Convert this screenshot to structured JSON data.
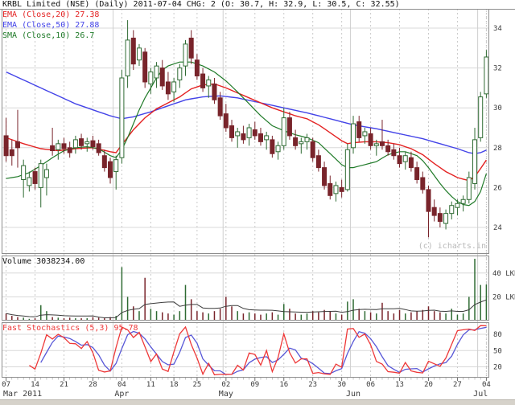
{
  "header": {
    "title": "KRBL Limited (NSE) (Daily) 2011-07-04 CHG: 2 (O: 30.7, H: 32.9, L: 30.5, C: 32.55)"
  },
  "legend": {
    "ema20": "EMA (Close,20) 27.38",
    "ema50": "EMA (Close,50) 27.88",
    "sma10": "SMA (Close,10) 26.7"
  },
  "panels": {
    "volume_label": "Volume 3038234.00",
    "stoch_label": "Fast Stochastics (5,3) 95.78",
    "watermark": "(c) icharts.in"
  },
  "chart_data": {
    "type": "candlestick+volume+stochastic",
    "symbol": "KRBL Limited (NSE)",
    "interval": "Daily",
    "last_date": "2011-07-04",
    "last_quote": {
      "chg": 2,
      "open": 30.7,
      "high": 32.9,
      "low": 30.5,
      "close": 32.55
    },
    "indicator_last": {
      "ema20": 27.38,
      "ema50": 27.88,
      "sma10": 26.7,
      "stoch_k": 95.78
    },
    "volume_last": 3038234.0,
    "price_axis_ticks": [
      34,
      32,
      30,
      28,
      26,
      24
    ],
    "volume_axis_ticks": [
      {
        "v": 40,
        "label": "40 LKHS"
      },
      {
        "v": 20,
        "label": "20 LKHS"
      }
    ],
    "stoch_axis_ticks": [
      80,
      50,
      20
    ],
    "candle_fields": [
      "date",
      "open",
      "high",
      "low",
      "close",
      "volume_lakhs"
    ],
    "candles": [
      [
        "Mar 07",
        28.6,
        29.5,
        27.3,
        27.6,
        6
      ],
      [
        "Mar 08",
        27.9,
        28.4,
        27.1,
        27.6,
        4
      ],
      [
        "Mar 09",
        28.3,
        29.9,
        27.0,
        28.0,
        3
      ],
      [
        "Mar 10",
        26.4,
        27.4,
        25.5,
        27.1,
        2.5
      ],
      [
        "Mar 11",
        26.1,
        26.8,
        25.8,
        26.5,
        1.5
      ],
      [
        "Mar 14",
        26.8,
        27.0,
        25.9,
        26.2,
        2
      ],
      [
        "Mar 15",
        26.0,
        27.4,
        25.0,
        27.2,
        13
      ],
      [
        "Mar 16",
        26.5,
        27.2,
        25.6,
        26.9,
        8
      ],
      [
        "Mar 17",
        28.1,
        29.0,
        27.6,
        27.85,
        3
      ],
      [
        "Mar 18",
        27.9,
        28.4,
        27.4,
        28.2,
        2.5
      ],
      [
        "Mar 21",
        28.2,
        28.5,
        27.7,
        27.95,
        2
      ],
      [
        "Mar 22",
        28.0,
        28.3,
        27.5,
        27.75,
        2.5
      ],
      [
        "Mar 23",
        28.0,
        28.6,
        27.7,
        28.4,
        2
      ],
      [
        "Mar 24",
        28.45,
        28.7,
        27.9,
        28.1,
        2
      ],
      [
        "Mar 25",
        28.2,
        28.5,
        27.8,
        28.3,
        2
      ],
      [
        "Mar 28",
        28.35,
        28.6,
        27.9,
        28.05,
        3
      ],
      [
        "Mar 29",
        28.2,
        28.4,
        27.6,
        27.75,
        2.5
      ],
      [
        "Mar 30",
        27.6,
        27.9,
        26.8,
        27.0,
        2
      ],
      [
        "Mar 31",
        27.3,
        27.5,
        26.2,
        26.5,
        3
      ],
      [
        "Apr 01",
        26.8,
        27.6,
        25.9,
        27.4,
        4
      ],
      [
        "Apr 04",
        27.5,
        31.9,
        27.2,
        31.5,
        45
      ],
      [
        "Apr 05",
        31.6,
        34.4,
        31.0,
        33.4,
        20
      ],
      [
        "Apr 06",
        33.5,
        33.9,
        31.9,
        32.2,
        12
      ],
      [
        "Apr 07",
        32.4,
        33.2,
        32.1,
        33.0,
        8
      ],
      [
        "Apr 08",
        32.8,
        33.0,
        31.0,
        31.3,
        36
      ],
      [
        "Apr 11",
        31.2,
        32.0,
        30.7,
        31.8,
        10
      ],
      [
        "Apr 12",
        31.5,
        32.3,
        31.0,
        32.1,
        8
      ],
      [
        "Apr 13",
        32.0,
        32.4,
        30.9,
        31.1,
        7
      ],
      [
        "Apr 15",
        31.3,
        31.8,
        30.4,
        30.7,
        6
      ],
      [
        "Apr 18",
        30.8,
        31.5,
        30.3,
        31.3,
        5
      ],
      [
        "Apr 19",
        31.4,
        32.2,
        31.0,
        32.0,
        8
      ],
      [
        "Apr 20",
        32.1,
        33.4,
        31.6,
        33.2,
        30
      ],
      [
        "Apr 21",
        33.5,
        33.9,
        32.2,
        32.5,
        18
      ],
      [
        "Apr 25",
        32.4,
        32.7,
        31.4,
        31.6,
        8
      ],
      [
        "Apr 26",
        31.7,
        32.0,
        30.8,
        31.0,
        7
      ],
      [
        "Apr 27",
        31.1,
        31.6,
        30.5,
        31.4,
        6
      ],
      [
        "Apr 28",
        31.2,
        31.5,
        30.2,
        30.4,
        8
      ],
      [
        "Apr 29",
        30.5,
        30.8,
        29.4,
        29.6,
        10
      ],
      [
        "May 02",
        29.7,
        30.2,
        28.8,
        29.0,
        20
      ],
      [
        "May 03",
        29.1,
        29.4,
        28.3,
        28.5,
        12
      ],
      [
        "May 04",
        28.6,
        29.0,
        28.0,
        28.8,
        8
      ],
      [
        "May 05",
        28.7,
        29.1,
        28.2,
        28.4,
        6
      ],
      [
        "May 06",
        28.5,
        29.2,
        28.1,
        29.0,
        7
      ],
      [
        "May 09",
        28.9,
        29.3,
        28.4,
        28.6,
        6
      ],
      [
        "May 10",
        28.7,
        29.0,
        28.1,
        28.3,
        5
      ],
      [
        "May 11",
        28.4,
        28.8,
        27.9,
        28.6,
        6
      ],
      [
        "May 12",
        28.4,
        28.6,
        27.5,
        27.7,
        7
      ],
      [
        "May 13",
        27.8,
        28.3,
        27.4,
        28.1,
        5
      ],
      [
        "May 16",
        28.1,
        30.0,
        27.9,
        29.5,
        14
      ],
      [
        "May 17",
        29.5,
        29.8,
        28.4,
        28.6,
        10
      ],
      [
        "May 18",
        28.5,
        28.9,
        27.9,
        28.1,
        6
      ],
      [
        "May 19",
        28.2,
        28.5,
        27.7,
        28.3,
        5
      ],
      [
        "May 20",
        28.3,
        28.7,
        27.9,
        28.5,
        6
      ],
      [
        "May 23",
        28.3,
        28.5,
        27.3,
        27.5,
        8
      ],
      [
        "May 24",
        27.6,
        27.9,
        26.8,
        27.0,
        7
      ],
      [
        "May 25",
        27.0,
        27.3,
        25.9,
        26.1,
        9
      ],
      [
        "May 26",
        26.2,
        26.6,
        25.4,
        25.6,
        8
      ],
      [
        "May 27",
        25.7,
        26.3,
        25.3,
        26.1,
        6
      ],
      [
        "May 30",
        26.0,
        26.4,
        25.5,
        25.8,
        5
      ],
      [
        "May 31",
        25.9,
        28.2,
        25.8,
        27.9,
        16
      ],
      [
        "Jun 01",
        28.0,
        29.6,
        27.7,
        29.2,
        18
      ],
      [
        "Jun 02",
        29.3,
        29.6,
        28.3,
        28.5,
        10
      ],
      [
        "Jun 03",
        28.6,
        29.0,
        28.2,
        28.8,
        8
      ],
      [
        "Jun 06",
        28.7,
        29.0,
        27.9,
        28.1,
        7
      ],
      [
        "Jun 07",
        28.1,
        28.4,
        27.6,
        28.2,
        6
      ],
      [
        "Jun 08",
        28.3,
        29.4,
        27.9,
        28.1,
        15
      ],
      [
        "Jun 09",
        28.1,
        28.4,
        27.6,
        27.8,
        8
      ],
      [
        "Jun 10",
        27.9,
        28.2,
        27.4,
        27.6,
        6
      ],
      [
        "Jun 13",
        27.6,
        28.0,
        27.0,
        27.2,
        9
      ],
      [
        "Jun 14",
        27.3,
        27.8,
        26.9,
        27.6,
        6
      ],
      [
        "Jun 15",
        27.5,
        27.8,
        26.8,
        27.0,
        7
      ],
      [
        "Jun 16",
        27.0,
        27.3,
        26.2,
        26.4,
        8
      ],
      [
        "Jun 17",
        26.5,
        26.8,
        25.7,
        25.9,
        9
      ],
      [
        "Jun 20",
        25.9,
        26.1,
        23.5,
        24.8,
        12
      ],
      [
        "Jun 21",
        25.0,
        25.4,
        24.3,
        24.6,
        8
      ],
      [
        "Jun 22",
        24.7,
        25.0,
        24.0,
        24.3,
        7
      ],
      [
        "Jun 23",
        24.2,
        24.9,
        23.9,
        24.7,
        6
      ],
      [
        "Jun 24",
        24.7,
        25.3,
        24.4,
        25.1,
        10
      ],
      [
        "Jun 27",
        25.0,
        25.4,
        24.6,
        25.2,
        5
      ],
      [
        "Jun 28",
        25.2,
        25.6,
        24.8,
        25.4,
        6
      ],
      [
        "Jun 29",
        25.4,
        26.8,
        25.2,
        26.5,
        20
      ],
      [
        "Jun 30",
        26.2,
        29.0,
        25.9,
        28.4,
        52
      ],
      [
        "Jul 01",
        28.5,
        30.8,
        28.3,
        30.55,
        30
      ],
      [
        "Jul 04",
        30.7,
        32.9,
        30.5,
        32.55,
        30.38
      ]
    ],
    "ema20_points": [
      [
        0,
        28.5
      ],
      [
        3,
        28.2
      ],
      [
        6,
        27.95
      ],
      [
        9,
        27.85
      ],
      [
        12,
        27.95
      ],
      [
        15,
        28.0
      ],
      [
        18,
        27.8
      ],
      [
        19,
        27.75
      ],
      [
        20,
        28.15
      ],
      [
        22,
        28.9
      ],
      [
        24,
        29.5
      ],
      [
        26,
        29.95
      ],
      [
        28,
        30.25
      ],
      [
        30,
        30.55
      ],
      [
        32,
        30.95
      ],
      [
        34,
        31.15
      ],
      [
        36,
        31.2
      ],
      [
        38,
        31.0
      ],
      [
        40,
        30.75
      ],
      [
        42,
        30.5
      ],
      [
        44,
        30.25
      ],
      [
        46,
        30.0
      ],
      [
        48,
        29.8
      ],
      [
        50,
        29.6
      ],
      [
        52,
        29.45
      ],
      [
        54,
        29.15
      ],
      [
        56,
        28.75
      ],
      [
        58,
        28.35
      ],
      [
        59,
        28.2
      ],
      [
        60,
        28.25
      ],
      [
        62,
        28.3
      ],
      [
        64,
        28.3
      ],
      [
        66,
        28.25
      ],
      [
        68,
        28.15
      ],
      [
        70,
        27.95
      ],
      [
        72,
        27.65
      ],
      [
        74,
        27.2
      ],
      [
        76,
        26.8
      ],
      [
        78,
        26.5
      ],
      [
        80,
        26.35
      ],
      [
        81,
        26.55
      ],
      [
        82,
        26.95
      ],
      [
        83,
        27.38
      ]
    ],
    "ema50_points": [
      [
        0,
        31.8
      ],
      [
        3,
        31.4
      ],
      [
        6,
        31.0
      ],
      [
        9,
        30.6
      ],
      [
        12,
        30.2
      ],
      [
        15,
        29.9
      ],
      [
        18,
        29.6
      ],
      [
        20,
        29.45
      ],
      [
        22,
        29.55
      ],
      [
        25,
        29.8
      ],
      [
        28,
        30.1
      ],
      [
        31,
        30.4
      ],
      [
        34,
        30.55
      ],
      [
        37,
        30.6
      ],
      [
        40,
        30.5
      ],
      [
        44,
        30.25
      ],
      [
        48,
        30.0
      ],
      [
        52,
        29.75
      ],
      [
        56,
        29.45
      ],
      [
        60,
        29.15
      ],
      [
        64,
        28.95
      ],
      [
        68,
        28.7
      ],
      [
        72,
        28.45
      ],
      [
        75,
        28.2
      ],
      [
        78,
        27.95
      ],
      [
        80,
        27.75
      ],
      [
        81,
        27.7
      ],
      [
        82,
        27.75
      ],
      [
        83,
        27.88
      ]
    ],
    "sma10_points": [
      [
        0,
        26.45
      ],
      [
        2,
        26.55
      ],
      [
        4,
        26.75
      ],
      [
        6,
        27.1
      ],
      [
        8,
        27.5
      ],
      [
        10,
        27.85
      ],
      [
        12,
        28.0
      ],
      [
        14,
        28.05
      ],
      [
        16,
        27.95
      ],
      [
        18,
        27.6
      ],
      [
        19,
        27.5
      ],
      [
        20,
        27.9
      ],
      [
        21,
        28.5
      ],
      [
        22,
        29.2
      ],
      [
        23,
        29.9
      ],
      [
        24,
        30.5
      ],
      [
        25,
        31.0
      ],
      [
        26,
        31.5
      ],
      [
        27,
        31.9
      ],
      [
        28,
        32.1
      ],
      [
        29,
        32.2
      ],
      [
        30,
        32.3
      ],
      [
        32,
        32.3
      ],
      [
        34,
        32.1
      ],
      [
        36,
        31.8
      ],
      [
        38,
        31.35
      ],
      [
        40,
        30.8
      ],
      [
        42,
        30.2
      ],
      [
        44,
        29.6
      ],
      [
        46,
        29.1
      ],
      [
        48,
        28.85
      ],
      [
        50,
        28.65
      ],
      [
        52,
        28.5
      ],
      [
        54,
        28.25
      ],
      [
        56,
        27.7
      ],
      [
        58,
        27.15
      ],
      [
        59,
        27.0
      ],
      [
        60,
        27.0
      ],
      [
        62,
        27.15
      ],
      [
        64,
        27.3
      ],
      [
        66,
        27.65
      ],
      [
        68,
        27.8
      ],
      [
        69,
        27.8
      ],
      [
        71,
        27.6
      ],
      [
        72,
        27.35
      ],
      [
        73,
        27.0
      ],
      [
        75,
        26.2
      ],
      [
        76,
        25.85
      ],
      [
        77,
        25.55
      ],
      [
        78,
        25.3
      ],
      [
        79,
        25.15
      ],
      [
        80,
        25.1
      ],
      [
        81,
        25.3
      ],
      [
        82,
        25.8
      ],
      [
        83,
        26.7
      ]
    ],
    "week_ticks": [
      {
        "i": 0,
        "t": "07"
      },
      {
        "i": 5,
        "t": "14"
      },
      {
        "i": 10,
        "t": "21"
      },
      {
        "i": 15,
        "t": "28"
      },
      {
        "i": 20,
        "t": "04"
      },
      {
        "i": 25,
        "t": "11"
      },
      {
        "i": 29,
        "t": "18"
      },
      {
        "i": 33,
        "t": "25"
      },
      {
        "i": 38,
        "t": "02"
      },
      {
        "i": 43,
        "t": "09"
      },
      {
        "i": 48,
        "t": "16"
      },
      {
        "i": 53,
        "t": "23"
      },
      {
        "i": 58,
        "t": "30"
      },
      {
        "i": 63,
        "t": "06"
      },
      {
        "i": 68,
        "t": "13"
      },
      {
        "i": 73,
        "t": "20"
      },
      {
        "i": 78,
        "t": "27"
      },
      {
        "i": 83,
        "t": "04"
      }
    ],
    "month_labels": [
      {
        "i": 0,
        "t": "Mar 2011",
        "align": "left"
      },
      {
        "i": 20,
        "t": "Apr"
      },
      {
        "i": 38,
        "t": "May"
      },
      {
        "i": 60,
        "t": "Jun"
      },
      {
        "i": 82,
        "t": "Jul"
      }
    ],
    "month_start_indices": [
      19,
      38,
      60,
      82
    ],
    "colors": {
      "up": "#2f6b33",
      "down": "#79242b",
      "ema20": "#e42222",
      "ema50": "#4343e8",
      "sma10": "#1f7a28",
      "stoch_k": "#ee3838",
      "stoch_d": "#5858d8",
      "grid": "#d8d8d8",
      "grid_dash": "#c9c9c9",
      "month_line": "#cfcfcf",
      "border": "#8e8e8e",
      "axis_text": "#3a3a3a",
      "vol_ma": "#3c3c3c",
      "watermark": "#b9b9b9"
    }
  }
}
